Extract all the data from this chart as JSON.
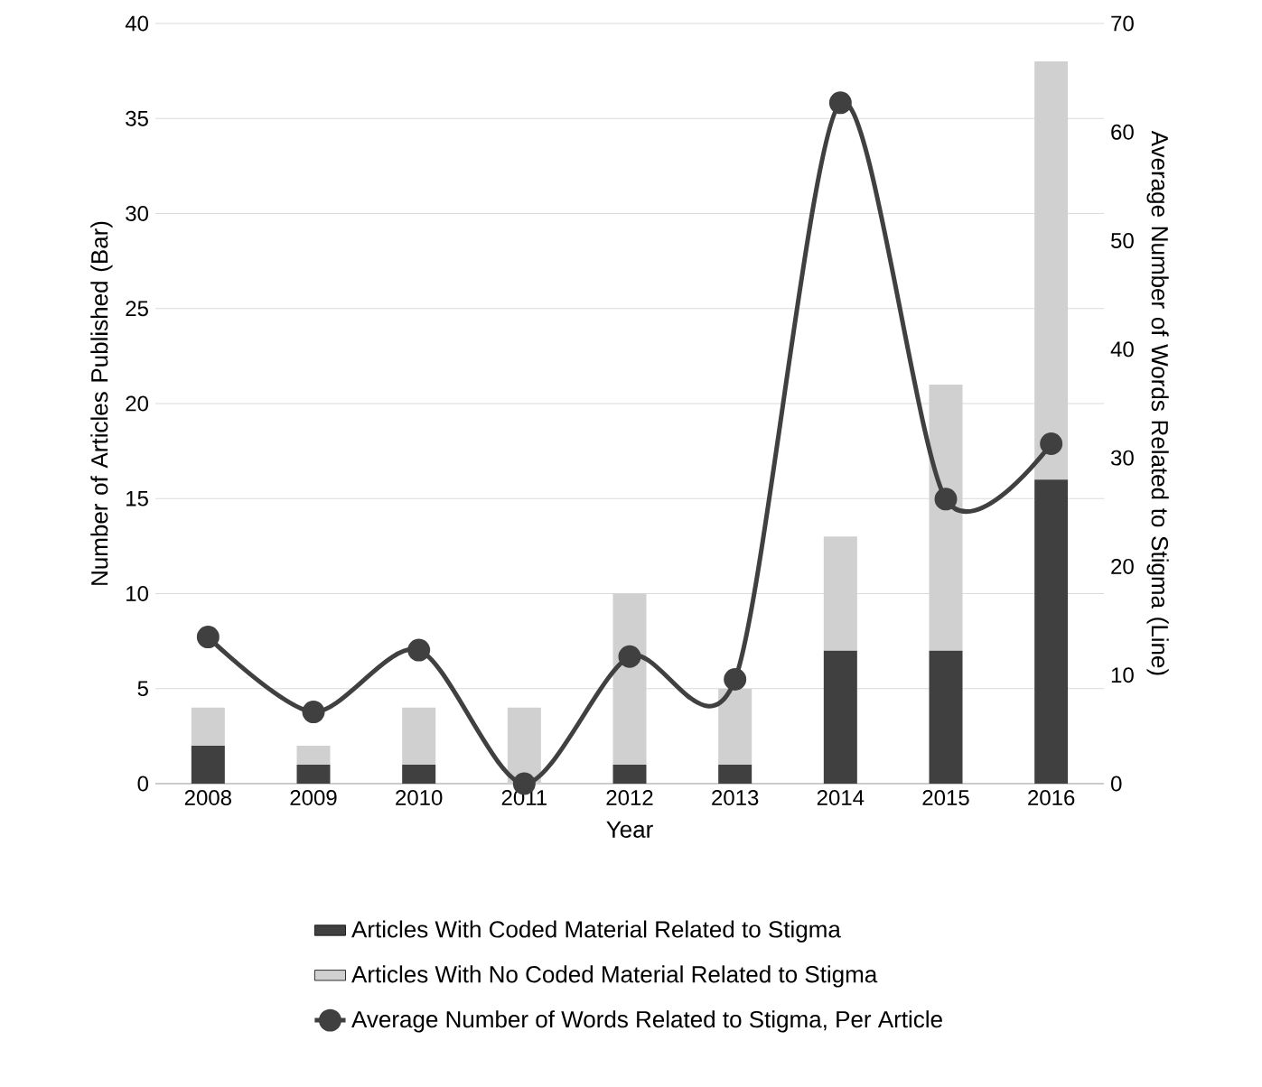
{
  "chart_data": {
    "type": "bar",
    "stacked": true,
    "xlabel": "Year",
    "ylabel": "Number of Articles Published (Bar)",
    "y2label": "Average Number of Words Related to Stigma (Line)",
    "categories": [
      "2008",
      "2009",
      "2010",
      "2011",
      "2012",
      "2013",
      "2014",
      "2015",
      "2016"
    ],
    "series": [
      {
        "name": "Articles With Coded Material Related to Stigma",
        "color": "#404040",
        "values": [
          2,
          1,
          1,
          0,
          1,
          1,
          7,
          7,
          16
        ]
      },
      {
        "name": "Articles With No Coded Material Related to Stigma",
        "color": "#d0d0d0",
        "values": [
          2,
          1,
          3,
          4,
          9,
          4,
          6,
          14,
          22
        ]
      },
      {
        "name": "Average Number of Words Related to Stigma, Per Article",
        "type": "line",
        "axis": "y2",
        "color": "#404040",
        "marker": "circle",
        "line_style": "solid",
        "values": [
          13.5,
          6.6,
          12.3,
          0,
          11.7,
          9.6,
          62.7,
          26.2,
          31.3
        ]
      }
    ],
    "ylim": [
      0,
      40
    ],
    "yticks": [
      0,
      5,
      10,
      15,
      20,
      25,
      30,
      35,
      40
    ],
    "y2lim": [
      0,
      70
    ],
    "y2ticks": [
      0,
      10,
      20,
      30,
      40,
      50,
      60,
      70
    ],
    "grid": "y",
    "legend": "bottom"
  }
}
